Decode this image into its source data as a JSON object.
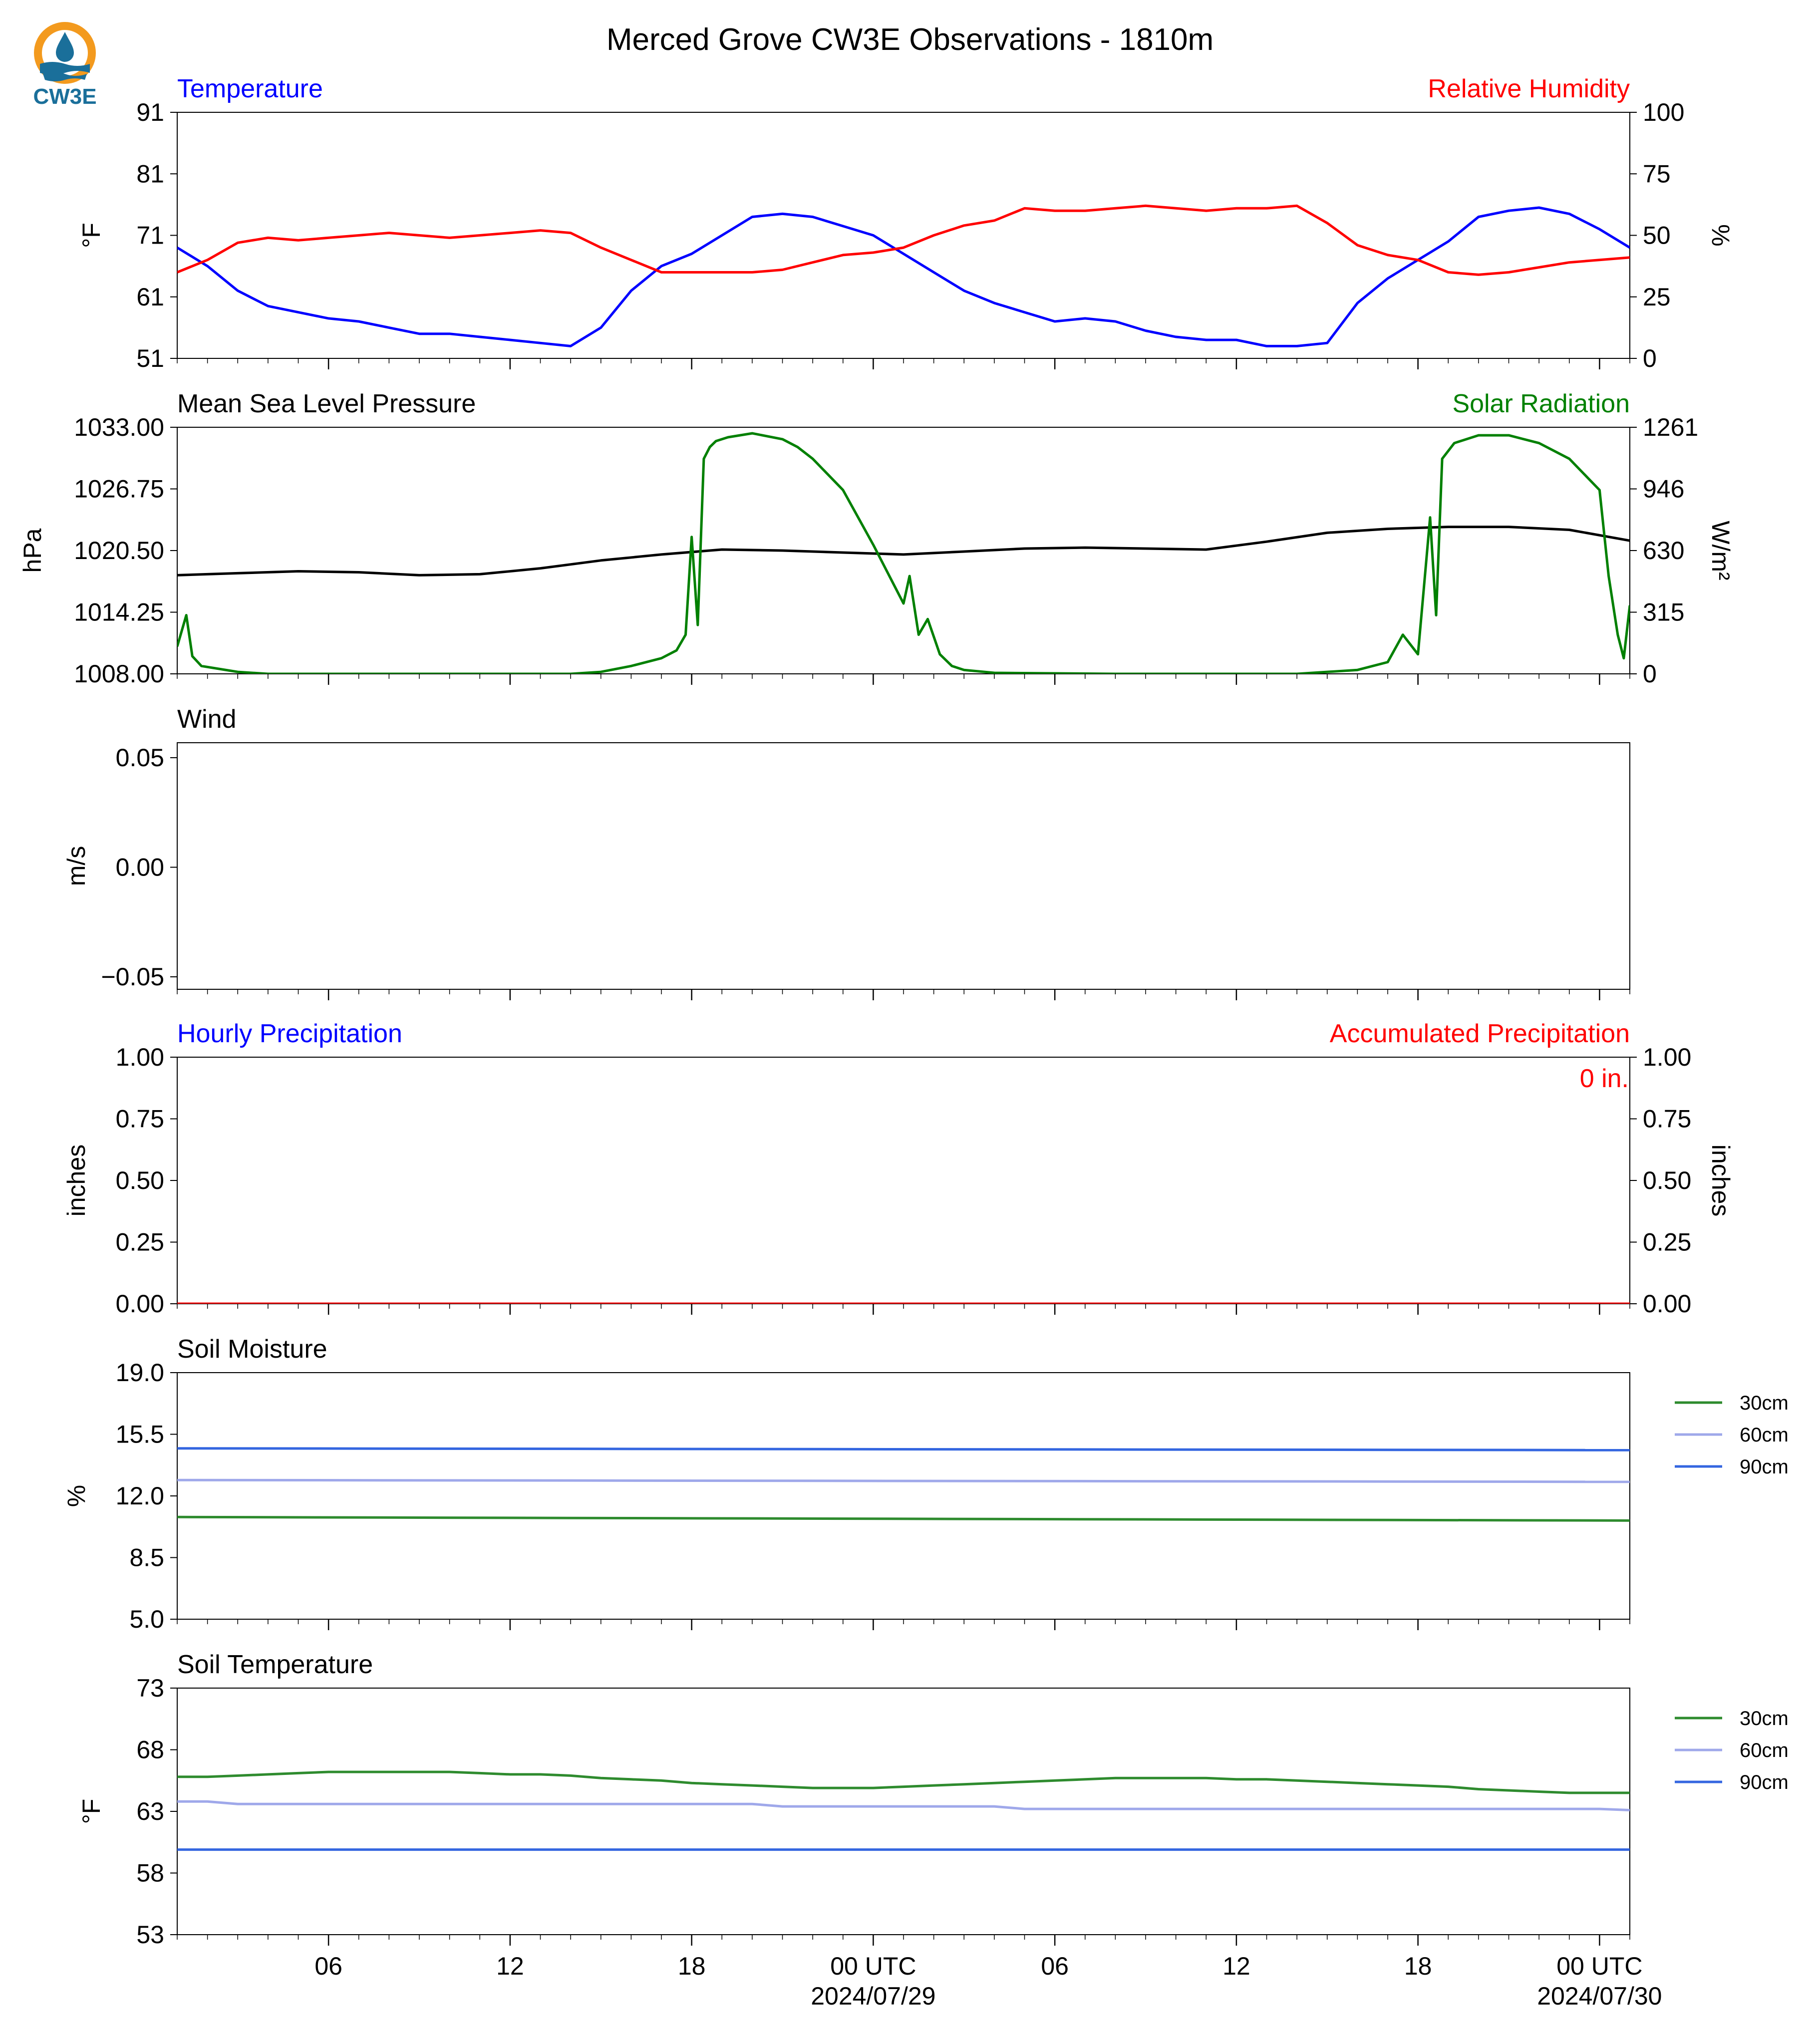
{
  "figure": {
    "title": "Merced Grove CW3E Observations - 1810m",
    "logo_text": "CW3E",
    "x_axis": {
      "tick_labels": [
        "06",
        "12",
        "18",
        "00 UTC",
        "06",
        "12",
        "18",
        "00 UTC"
      ],
      "tick_hours": [
        6,
        12,
        18,
        24,
        30,
        36,
        42,
        48
      ],
      "date_labels": [
        "2024/07/29",
        "2024/07/30"
      ],
      "minor_tick_interval_hours": 1,
      "range_hours": [
        1,
        49
      ]
    }
  },
  "panels": {
    "temperature": {
      "left_title": "Temperature",
      "right_title": "Relative Humidity",
      "left_color": "#0000ff",
      "right_color": "#ff0000",
      "left_label": "$^\\circ$F",
      "right_label": "%",
      "left_ticks": [
        "91",
        "81",
        "71",
        "61",
        "51"
      ],
      "right_ticks": [
        "100",
        "75",
        "50",
        "25",
        "0"
      ]
    },
    "pressure": {
      "left_title": "Mean Sea Level Pressure",
      "right_title": "Solar Radiation",
      "left_color": "#000000",
      "right_color": "#008000",
      "left_label": "hPa",
      "right_label": "W/m²",
      "left_ticks": [
        "1033.00",
        "1026.75",
        "1020.50",
        "1014.25",
        "1008.00"
      ],
      "right_ticks": [
        "1261",
        "946",
        "630",
        "315",
        "0"
      ]
    },
    "wind": {
      "left_title": "Wind",
      "left_label": "m/s",
      "left_ticks": [
        "0.05",
        "0.00",
        "−0.05"
      ]
    },
    "precip": {
      "left_title": "Hourly Precipitation",
      "right_title": "Accumulated Precipitation",
      "left_color": "#0000ff",
      "right_color": "#ff0000",
      "left_label": "inches",
      "right_label": "inches",
      "left_ticks": [
        "1.00",
        "0.75",
        "0.50",
        "0.25",
        "0.00"
      ],
      "right_ticks": [
        "1.00",
        "0.75",
        "0.50",
        "0.25",
        "0.00"
      ],
      "accum_text": "0 in."
    },
    "soil_moisture": {
      "left_title": "Soil Moisture",
      "left_label": "%",
      "left_ticks": [
        "19.0",
        "15.5",
        "12.0",
        "8.5",
        "5.0"
      ],
      "legend": [
        "30cm",
        "60cm",
        "90cm"
      ]
    },
    "soil_temp": {
      "left_title": "Soil Temperature",
      "left_label": "$^\\circ$F",
      "left_ticks": [
        "73",
        "68",
        "63",
        "58",
        "53"
      ],
      "legend": [
        "30cm",
        "60cm",
        "90cm"
      ]
    }
  },
  "chart_data": [
    {
      "type": "line",
      "title": "Temperature",
      "x_unit": "hours after 2024/07/28 00 UTC",
      "ylabel": "°F",
      "ylim": [
        51,
        91
      ],
      "series": [
        {
          "name": "Temperature",
          "color": "#0000ff",
          "axis": "left",
          "x": [
            1,
            2,
            3,
            4,
            5,
            6,
            7,
            8,
            9,
            10,
            11,
            12,
            13,
            14,
            15,
            16,
            17,
            18,
            19,
            20,
            21,
            22,
            23,
            24,
            25,
            26,
            27,
            28,
            29,
            30,
            31,
            32,
            33,
            34,
            35,
            36,
            37,
            38,
            39,
            40,
            41,
            42,
            43,
            44,
            45,
            46,
            47,
            48,
            49
          ],
          "y": [
            69.0,
            66.0,
            62.0,
            59.5,
            58.5,
            57.5,
            57.0,
            56.0,
            55.0,
            55.0,
            54.5,
            54.0,
            53.5,
            53.0,
            56.0,
            62.0,
            66.0,
            68.0,
            71.0,
            74.0,
            74.5,
            74.0,
            72.5,
            71.0,
            68.0,
            65.0,
            62.0,
            60.0,
            58.5,
            57.0,
            57.5,
            57.0,
            55.5,
            54.5,
            54.0,
            54.0,
            53.0,
            53.0,
            53.5,
            60.0,
            64.0,
            67.0,
            70.0,
            74.0,
            75.0,
            75.5,
            74.5,
            72.0,
            69.0
          ]
        },
        {
          "name": "Relative Humidity",
          "color": "#ff0000",
          "axis": "right",
          "unit": "%",
          "ylim": [
            0,
            100
          ],
          "x": [
            1,
            2,
            3,
            4,
            5,
            6,
            7,
            8,
            9,
            10,
            11,
            12,
            13,
            14,
            15,
            16,
            17,
            18,
            19,
            20,
            21,
            22,
            23,
            24,
            25,
            26,
            27,
            28,
            29,
            30,
            31,
            32,
            33,
            34,
            35,
            36,
            37,
            38,
            39,
            40,
            41,
            42,
            43,
            44,
            45,
            46,
            47,
            48,
            49
          ],
          "y": [
            35,
            40,
            47,
            49,
            48,
            49,
            50,
            51,
            50,
            49,
            50,
            51,
            52,
            51,
            45,
            40,
            35,
            35,
            35,
            35,
            36,
            39,
            42,
            43,
            45,
            50,
            54,
            56,
            61,
            60,
            60,
            61,
            62,
            61,
            60,
            61,
            61,
            62,
            55,
            46,
            42,
            40,
            35,
            34,
            35,
            37,
            39,
            40,
            41
          ]
        }
      ]
    },
    {
      "type": "line",
      "title": "Mean Sea Level Pressure",
      "ylabel": "hPa",
      "ylim": [
        1008.0,
        1033.0
      ],
      "series": [
        {
          "name": "Mean Sea Level Pressure",
          "color": "#000000",
          "axis": "left",
          "x": [
            1,
            3,
            5,
            7,
            9,
            11,
            13,
            15,
            17,
            19,
            21,
            23,
            25,
            27,
            29,
            31,
            33,
            35,
            37,
            39,
            41,
            43,
            45,
            47,
            49
          ],
          "y": [
            1018.0,
            1018.2,
            1018.4,
            1018.3,
            1018.0,
            1018.1,
            1018.7,
            1019.5,
            1020.1,
            1020.6,
            1020.5,
            1020.3,
            1020.1,
            1020.4,
            1020.7,
            1020.8,
            1020.7,
            1020.6,
            1021.4,
            1022.3,
            1022.7,
            1022.9,
            1022.9,
            1022.6,
            1021.5
          ]
        },
        {
          "name": "Solar Radiation",
          "color": "#008000",
          "axis": "right",
          "unit": "W/m²",
          "ylim": [
            0,
            1261
          ],
          "x": [
            1,
            1.3,
            1.5,
            1.8,
            3,
            4,
            8,
            12,
            14,
            15,
            16,
            17,
            17.5,
            17.8,
            18.0,
            18.2,
            18.4,
            18.6,
            18.8,
            19.2,
            20,
            21,
            21.5,
            22,
            23,
            24,
            25,
            25.2,
            25.5,
            25.8,
            26.2,
            26.6,
            27,
            28,
            32,
            36,
            38,
            40,
            41,
            41.5,
            42,
            42.2,
            42.4,
            42.6,
            42.8,
            43.2,
            44,
            45,
            46,
            47,
            48,
            48.3,
            48.6,
            48.8,
            49
          ],
          "y": [
            140,
            300,
            90,
            40,
            10,
            0,
            0,
            0,
            0,
            10,
            40,
            80,
            120,
            200,
            700,
            250,
            1100,
            1160,
            1190,
            1210,
            1230,
            1200,
            1160,
            1100,
            940,
            660,
            360,
            500,
            200,
            280,
            100,
            40,
            20,
            5,
            0,
            0,
            0,
            20,
            60,
            200,
            100,
            450,
            800,
            300,
            1100,
            1180,
            1220,
            1220,
            1180,
            1100,
            940,
            500,
            200,
            80,
            350
          ]
        }
      ]
    },
    {
      "type": "line",
      "title": "Wind",
      "ylabel": "m/s",
      "ylim": [
        -0.055,
        0.055
      ],
      "series": []
    },
    {
      "type": "line",
      "title": "Hourly Precipitation",
      "ylabel": "inches",
      "ylim": [
        0,
        1
      ],
      "series": [
        {
          "name": "Accumulated Precipitation",
          "color": "#ff0000",
          "axis": "right",
          "x": [
            1,
            49
          ],
          "y": [
            0,
            0
          ]
        }
      ]
    },
    {
      "type": "line",
      "title": "Soil Moisture",
      "ylabel": "%",
      "ylim": [
        5.0,
        19.0
      ],
      "series": [
        {
          "name": "30cm",
          "color": "#2e8b2e",
          "x": [
            1,
            49
          ],
          "y": [
            10.8,
            10.6
          ]
        },
        {
          "name": "60cm",
          "color": "#9fa8ea",
          "x": [
            1,
            49
          ],
          "y": [
            12.9,
            12.8
          ]
        },
        {
          "name": "90cm",
          "color": "#3466e0",
          "x": [
            1,
            49
          ],
          "y": [
            14.7,
            14.6
          ]
        }
      ]
    },
    {
      "type": "line",
      "title": "Soil Temperature",
      "ylabel": "°F",
      "ylim": [
        53,
        73
      ],
      "series": [
        {
          "name": "30cm",
          "color": "#2e8b2e",
          "x": [
            1,
            2,
            3,
            4,
            5,
            6,
            7,
            8,
            9,
            10,
            11,
            12,
            13,
            14,
            15,
            16,
            17,
            18,
            19,
            20,
            21,
            22,
            23,
            24,
            25,
            26,
            27,
            28,
            29,
            30,
            31,
            32,
            33,
            34,
            35,
            36,
            37,
            38,
            39,
            40,
            41,
            42,
            43,
            44,
            45,
            46,
            47,
            48,
            49
          ],
          "y": [
            65.8,
            65.8,
            65.9,
            66.0,
            66.1,
            66.2,
            66.2,
            66.2,
            66.2,
            66.2,
            66.1,
            66.0,
            66.0,
            65.9,
            65.7,
            65.6,
            65.5,
            65.3,
            65.2,
            65.1,
            65.0,
            64.9,
            64.9,
            64.9,
            65.0,
            65.1,
            65.2,
            65.3,
            65.4,
            65.5,
            65.6,
            65.7,
            65.7,
            65.7,
            65.7,
            65.6,
            65.6,
            65.5,
            65.4,
            65.3,
            65.2,
            65.1,
            65.0,
            64.8,
            64.7,
            64.6,
            64.5,
            64.5,
            64.5
          ]
        },
        {
          "name": "60cm",
          "color": "#9fa8ea",
          "x": [
            1,
            2,
            3,
            12,
            20,
            21,
            28,
            29,
            48,
            49
          ],
          "y": [
            63.8,
            63.8,
            63.6,
            63.6,
            63.6,
            63.4,
            63.4,
            63.2,
            63.2,
            63.1
          ]
        },
        {
          "name": "90cm",
          "color": "#3466e0",
          "x": [
            1,
            49
          ],
          "y": [
            59.9,
            59.9
          ]
        }
      ]
    }
  ]
}
